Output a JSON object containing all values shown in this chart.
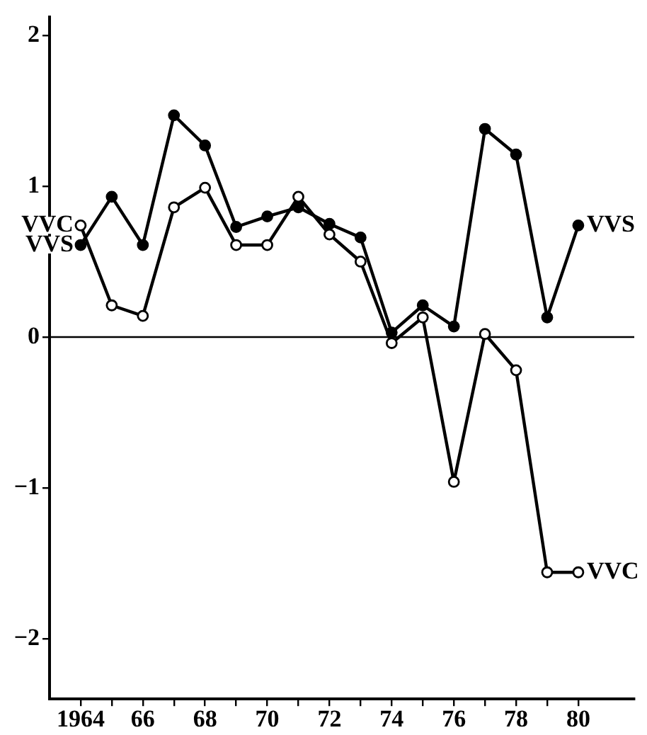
{
  "chart_data": {
    "type": "line",
    "x": [
      1964,
      1965,
      1966,
      1967,
      1968,
      1969,
      1970,
      1971,
      1972,
      1973,
      1974,
      1975,
      1976,
      1977,
      1978,
      1979,
      1980
    ],
    "series": [
      {
        "name": "VVS",
        "color": "#000000",
        "values": [
          0.61,
          0.93,
          0.61,
          1.47,
          1.27,
          0.73,
          0.8,
          0.86,
          0.75,
          0.66,
          0.03,
          0.21,
          0.07,
          1.38,
          1.21,
          0.13,
          0.74
        ]
      },
      {
        "name": "VVC",
        "color": "#000000",
        "values": [
          0.74,
          0.21,
          0.14,
          0.86,
          0.99,
          0.61,
          0.61,
          0.93,
          0.68,
          0.5,
          -0.04,
          0.13,
          -0.96,
          0.02,
          -0.22,
          -1.56,
          -1.56
        ]
      }
    ],
    "xlim": [
      1963,
      1981.8
    ],
    "xticks": [
      1964,
      {
        "value": 1965,
        "label": null
      },
      {
        "value": 1966,
        "label": "66"
      },
      {
        "value": 1967,
        "label": null
      },
      {
        "value": 1968,
        "label": "68"
      },
      {
        "value": 1969,
        "label": null
      },
      {
        "value": 1970,
        "label": "70"
      },
      {
        "value": 1971,
        "label": null
      },
      {
        "value": 1972,
        "label": "72"
      },
      {
        "value": 1973,
        "label": null
      },
      {
        "value": 1974,
        "label": "74"
      },
      {
        "value": 1975,
        "label": null
      },
      {
        "value": 1976,
        "label": "76"
      },
      {
        "value": 1977,
        "label": null
      },
      {
        "value": 1978,
        "label": "78"
      },
      {
        "value": 1979,
        "label": null
      },
      {
        "value": 1980,
        "label": "80"
      }
    ],
    "ylim": [
      -2.4,
      2.12
    ],
    "yticks": [
      {
        "value": -2,
        "label": "−2"
      },
      {
        "value": -1,
        "label": "−1"
      },
      0,
      1,
      2
    ],
    "ref_lines": [
      {
        "axis": "y",
        "value": 0,
        "color": "#000000"
      }
    ],
    "grid": false,
    "legend": false,
    "marker": "circle",
    "line_style": "solid"
  }
}
